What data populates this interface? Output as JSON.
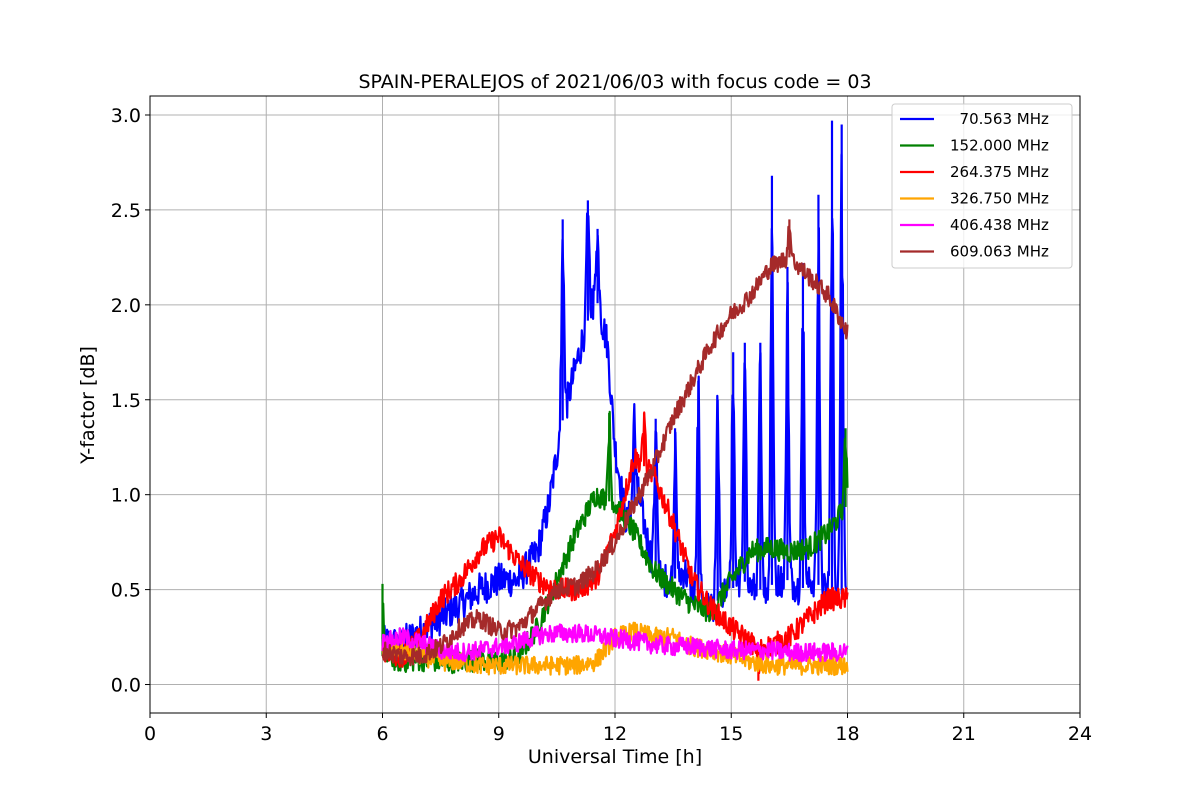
{
  "chart_data": {
    "type": "line",
    "title": "SPAIN-PERALEJOS of 2021/06/03 with focus code = 03",
    "xlabel": "Universal Time [h]",
    "ylabel": "Y-factor [dB]",
    "xlim": [
      0,
      24
    ],
    "ylim": [
      -0.15,
      3.1
    ],
    "xticks": [
      0,
      3,
      6,
      9,
      12,
      15,
      18,
      21,
      24
    ],
    "xtick_labels": [
      "0",
      "3",
      "6",
      "9",
      "12",
      "15",
      "18",
      "21",
      "24"
    ],
    "yticks": [
      0.0,
      0.5,
      1.0,
      1.5,
      2.0,
      2.5,
      3.0
    ],
    "ytick_labels": [
      "0.0",
      "0.5",
      "1.0",
      "1.5",
      "2.0",
      "2.5",
      "3.0"
    ],
    "grid": true,
    "legend_position": "top-right",
    "series": [
      {
        "name": "  70.563 MHz",
        "color": "#0000ff",
        "x": [
          6.0,
          6.5,
          7.0,
          7.5,
          8.0,
          8.5,
          9.0,
          9.5,
          10.0,
          10.3,
          10.6,
          10.9,
          11.2,
          11.5,
          11.8,
          12.0,
          12.3,
          12.6,
          12.9,
          13.2,
          13.5,
          13.8,
          14.1,
          14.4,
          14.7,
          15.0,
          15.3,
          15.6,
          15.9,
          16.2,
          16.5,
          16.8,
          17.1,
          17.4,
          17.7,
          18.0
        ],
        "values": [
          0.22,
          0.22,
          0.28,
          0.35,
          0.42,
          0.5,
          0.55,
          0.55,
          0.7,
          0.95,
          1.35,
          1.6,
          1.85,
          2.05,
          1.8,
          1.25,
          0.85,
          1.0,
          0.7,
          0.55,
          0.55,
          0.6,
          0.45,
          0.4,
          0.45,
          0.5,
          0.55,
          0.5,
          0.5,
          0.55,
          0.55,
          0.5,
          0.55,
          0.5,
          0.5,
          0.45
        ],
        "spike_x": [
          10.65,
          11.3,
          11.55,
          12.5,
          13.05,
          13.55,
          14.15,
          14.65,
          15.05,
          15.35,
          15.75,
          16.05,
          16.45,
          16.85,
          17.25,
          17.6,
          17.85
        ],
        "spike_y": [
          2.45,
          2.55,
          2.4,
          1.45,
          1.4,
          1.35,
          1.6,
          1.5,
          1.75,
          1.8,
          1.8,
          2.68,
          2.2,
          2.22,
          2.58,
          2.97,
          2.95
        ]
      },
      {
        "name": "152.000 MHz",
        "color": "#008000",
        "x": [
          6.0,
          6.5,
          7.0,
          7.5,
          8.0,
          8.5,
          9.0,
          9.5,
          10.0,
          10.5,
          11.0,
          11.5,
          12.0,
          12.5,
          13.0,
          13.5,
          14.0,
          14.5,
          15.0,
          15.5,
          16.0,
          16.5,
          17.0,
          17.5,
          18.0
        ],
        "values": [
          0.15,
          0.12,
          0.13,
          0.12,
          0.12,
          0.13,
          0.12,
          0.15,
          0.3,
          0.55,
          0.8,
          1.0,
          0.95,
          0.8,
          0.6,
          0.5,
          0.42,
          0.38,
          0.55,
          0.7,
          0.72,
          0.7,
          0.72,
          0.8,
          0.95
        ],
        "spike_x": [
          6.0,
          11.85,
          17.95
        ],
        "spike_y": [
          0.53,
          1.43,
          1.35
        ]
      },
      {
        "name": "264.375 MHz",
        "color": "#ff0000",
        "x": [
          6.0,
          6.5,
          7.0,
          7.5,
          8.0,
          8.5,
          9.0,
          9.5,
          10.0,
          10.5,
          11.0,
          11.5,
          12.0,
          12.5,
          13.0,
          13.5,
          14.0,
          14.5,
          15.0,
          15.5,
          16.0,
          16.5,
          17.0,
          17.5,
          18.0
        ],
        "values": [
          0.18,
          0.15,
          0.25,
          0.45,
          0.55,
          0.7,
          0.78,
          0.65,
          0.55,
          0.5,
          0.5,
          0.55,
          0.8,
          1.2,
          1.1,
          0.85,
          0.55,
          0.4,
          0.3,
          0.22,
          0.2,
          0.25,
          0.35,
          0.45,
          0.45
        ],
        "spike_x": [
          12.75,
          15.7
        ],
        "spike_y": [
          1.43,
          0.02
        ]
      },
      {
        "name": "326.750 MHz",
        "color": "#ffa500",
        "x": [
          6.0,
          6.5,
          7.0,
          7.5,
          8.0,
          8.5,
          9.0,
          9.5,
          10.0,
          10.5,
          11.0,
          11.5,
          12.0,
          12.5,
          13.0,
          13.5,
          14.0,
          14.5,
          15.0,
          15.5,
          16.0,
          16.5,
          17.0,
          17.5,
          18.0
        ],
        "values": [
          0.2,
          0.18,
          0.15,
          0.12,
          0.12,
          0.1,
          0.1,
          0.1,
          0.1,
          0.1,
          0.1,
          0.12,
          0.25,
          0.28,
          0.25,
          0.25,
          0.2,
          0.18,
          0.15,
          0.12,
          0.1,
          0.1,
          0.1,
          0.1,
          0.1
        ],
        "spike_x": [],
        "spike_y": []
      },
      {
        "name": "406.438 MHz",
        "color": "#ff00ff",
        "x": [
          6.0,
          6.5,
          7.0,
          7.5,
          8.0,
          8.5,
          9.0,
          9.5,
          10.0,
          10.5,
          11.0,
          11.5,
          12.0,
          12.5,
          13.0,
          13.5,
          14.0,
          14.5,
          15.0,
          15.5,
          16.0,
          16.5,
          17.0,
          17.5,
          18.0
        ],
        "values": [
          0.22,
          0.25,
          0.22,
          0.18,
          0.17,
          0.18,
          0.2,
          0.22,
          0.26,
          0.27,
          0.27,
          0.26,
          0.24,
          0.23,
          0.21,
          0.2,
          0.2,
          0.19,
          0.18,
          0.18,
          0.18,
          0.17,
          0.17,
          0.17,
          0.17
        ],
        "spike_x": [],
        "spike_y": []
      },
      {
        "name": "609.063 MHz",
        "color": "#a52a2a",
        "x": [
          6.0,
          6.5,
          7.0,
          7.5,
          8.0,
          8.5,
          9.0,
          9.5,
          10.0,
          10.5,
          11.0,
          11.5,
          12.0,
          12.5,
          13.0,
          13.5,
          14.0,
          14.5,
          15.0,
          15.5,
          16.0,
          16.5,
          17.0,
          17.5,
          18.0
        ],
        "values": [
          0.18,
          0.15,
          0.15,
          0.2,
          0.3,
          0.35,
          0.28,
          0.3,
          0.4,
          0.5,
          0.52,
          0.6,
          0.75,
          0.95,
          1.15,
          1.4,
          1.6,
          1.8,
          1.95,
          2.05,
          2.2,
          2.25,
          2.15,
          2.05,
          1.85
        ],
        "spike_x": [
          16.5
        ],
        "spike_y": [
          2.45
        ]
      }
    ]
  }
}
